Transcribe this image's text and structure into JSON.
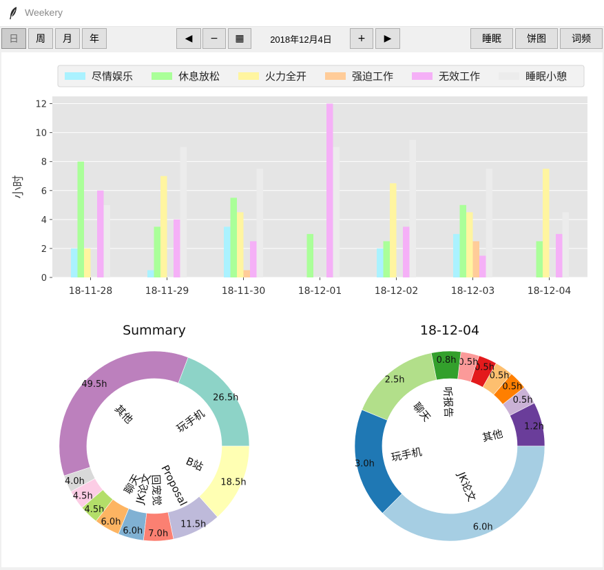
{
  "window": {
    "title": "Weekery"
  },
  "toolbar": {
    "day_label": "日",
    "week_label": "周",
    "month_label": "月",
    "year_label": "年",
    "prev_label": "◀",
    "minus_label": "−",
    "calendar_label": "▦",
    "date_label": "2018年12月4日",
    "plus_label": "+",
    "next_label": "▶",
    "sleep_label": "睡眠",
    "pie_label": "饼图",
    "wordfreq_label": "词频"
  },
  "chart_data": [
    {
      "type": "bar",
      "ylabel": "小时",
      "ylim": [
        0,
        12.5
      ],
      "yticks": [
        0,
        2,
        4,
        6,
        8,
        10,
        12
      ],
      "grid": true,
      "legend": "top",
      "categories": [
        "18-11-28",
        "18-11-29",
        "18-11-30",
        "18-12-01",
        "18-12-02",
        "18-12-03",
        "18-12-04"
      ],
      "series": [
        {
          "name": "尽情娱乐",
          "color": "#aaf2ff",
          "values": [
            2,
            0.5,
            3.5,
            0,
            2,
            3,
            0
          ]
        },
        {
          "name": "休息放松",
          "color": "#aaff99",
          "values": [
            8,
            3.5,
            5.5,
            3,
            2.5,
            5,
            2.5
          ]
        },
        {
          "name": "火力全开",
          "color": "#fff5a0",
          "values": [
            2,
            7,
            4.5,
            0,
            6.5,
            4.5,
            7.5
          ]
        },
        {
          "name": "强迫工作",
          "color": "#ffcc99",
          "values": [
            0,
            0,
            0.5,
            0,
            0,
            2.5,
            0
          ]
        },
        {
          "name": "无效工作",
          "color": "#f5b0f7",
          "values": [
            6,
            4,
            2.5,
            12,
            3.5,
            1.5,
            3
          ]
        },
        {
          "name": "睡眠小憩",
          "color": "#ececec",
          "values": [
            5,
            9,
            7.5,
            9,
            9.5,
            7.5,
            4.5
          ]
        }
      ]
    },
    {
      "type": "pie",
      "title": "Summary",
      "slices": [
        {
          "label": "玩手机",
          "value": 26.5,
          "value_label": "26.5h",
          "color": "#8dd3c7"
        },
        {
          "label": "其他",
          "value": 49.5,
          "value_label": "49.5h",
          "color": "#bc80bd"
        },
        {
          "label": "",
          "value": 4.0,
          "value_label": "4.0h",
          "color": "#d9d9d9"
        },
        {
          "label": "",
          "value": 4.5,
          "value_label": "4.5h",
          "color": "#fccde5"
        },
        {
          "label": "",
          "value": 4.5,
          "value_label": "4.5h",
          "color": "#b3de69"
        },
        {
          "label": "聊天",
          "value": 6.0,
          "value_label": "6.0h",
          "color": "#fdb462"
        },
        {
          "label": "JK论文",
          "value": 6.0,
          "value_label": "6.0h",
          "color": "#80b1d3"
        },
        {
          "label": "回宠觉",
          "value": 7.0,
          "value_label": "7.0h",
          "color": "#fb8072"
        },
        {
          "label": "Proposal",
          "value": 11.5,
          "value_label": "11.5h",
          "color": "#bebada"
        },
        {
          "label": "B站",
          "value": 18.5,
          "value_label": "18.5h",
          "color": "#ffffb3"
        }
      ]
    },
    {
      "type": "pie",
      "title": "18-12-04",
      "slices": [
        {
          "label": "其他",
          "value": 1.2,
          "value_label": "1.2h",
          "color": "#6a3d9a"
        },
        {
          "label": "",
          "value": 0.5,
          "value_label": "0.5h",
          "color": "#cab2d6"
        },
        {
          "label": "",
          "value": 0.5,
          "value_label": "0.5h",
          "color": "#ff7f00"
        },
        {
          "label": "",
          "value": 0.5,
          "value_label": "0.5h",
          "color": "#fdbf6f"
        },
        {
          "label": "",
          "value": 0.5,
          "value_label": "0.5h",
          "color": "#e31a1c"
        },
        {
          "label": "",
          "value": 0.5,
          "value_label": "0.5h",
          "color": "#fb9a99"
        },
        {
          "label": "听报告",
          "value": 0.8,
          "value_label": "0.8h",
          "color": "#33a02c"
        },
        {
          "label": "聊天",
          "value": 2.5,
          "value_label": "2.5h",
          "color": "#b2df8a"
        },
        {
          "label": "玩手机",
          "value": 3.0,
          "value_label": "3.0h",
          "color": "#1f78b4"
        },
        {
          "label": "JK论文",
          "value": 6.0,
          "value_label": "6.0h",
          "color": "#a6cee3"
        }
      ]
    }
  ]
}
